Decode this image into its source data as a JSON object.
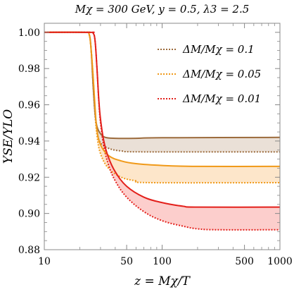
{
  "chart_data": {
    "type": "line",
    "title": "Mχ = 300 GeV, y = 0.5, λ3 = 2.5",
    "xlabel": "z = Mχ/T",
    "ylabel": "YSE/YLO",
    "xscale": "log",
    "xlim": [
      10,
      1000
    ],
    "ylim": [
      0.88,
      1.005
    ],
    "xticks": [
      10,
      50,
      100,
      500,
      1000
    ],
    "xtick_labels": [
      "10",
      "50",
      "100",
      "500",
      "1000"
    ],
    "yticks": [
      0.88,
      0.9,
      0.92,
      0.94,
      0.96,
      0.98,
      1.0
    ],
    "ytick_labels": [
      "0.88",
      "0.90",
      "0.92",
      "0.94",
      "0.96",
      "0.98",
      "1.00"
    ],
    "legend_position": "top-right",
    "series": [
      {
        "name": "ΔM/Mχ = 0.1",
        "color": "#9c6b3c",
        "fill": "#e8ddd3",
        "solid": [
          [
            10,
            1.0
          ],
          [
            22,
            1.0
          ],
          [
            24,
            0.999
          ],
          [
            25,
            0.99
          ],
          [
            26,
            0.97
          ],
          [
            27,
            0.955
          ],
          [
            28,
            0.948
          ],
          [
            30,
            0.944
          ],
          [
            33,
            0.942
          ],
          [
            40,
            0.9415
          ],
          [
            60,
            0.9415
          ],
          [
            100,
            0.9418
          ],
          [
            1000,
            0.942
          ]
        ],
        "dotted": [
          [
            10,
            1.0
          ],
          [
            22,
            1.0
          ],
          [
            24,
            0.999
          ],
          [
            25,
            0.99
          ],
          [
            26,
            0.97
          ],
          [
            27,
            0.954
          ],
          [
            28,
            0.945
          ],
          [
            30,
            0.939
          ],
          [
            35,
            0.936
          ],
          [
            45,
            0.9345
          ],
          [
            70,
            0.934
          ],
          [
            1000,
            0.934
          ]
        ]
      },
      {
        "name": "ΔM/Mχ = 0.05",
        "color": "#f09a1a",
        "fill": "#fde3c4",
        "solid": [
          [
            10,
            1.0
          ],
          [
            22,
            1.0
          ],
          [
            24,
            0.999
          ],
          [
            25,
            0.99
          ],
          [
            26,
            0.975
          ],
          [
            27,
            0.958
          ],
          [
            28,
            0.946
          ],
          [
            30,
            0.938
          ],
          [
            35,
            0.932
          ],
          [
            45,
            0.929
          ],
          [
            60,
            0.9275
          ],
          [
            100,
            0.9265
          ],
          [
            200,
            0.926
          ],
          [
            1000,
            0.926
          ]
        ],
        "dotted": [
          [
            10,
            1.0
          ],
          [
            22,
            1.0
          ],
          [
            24,
            0.999
          ],
          [
            25,
            0.99
          ],
          [
            26,
            0.975
          ],
          [
            27,
            0.956
          ],
          [
            28,
            0.943
          ],
          [
            30,
            0.933
          ],
          [
            35,
            0.925
          ],
          [
            45,
            0.92
          ],
          [
            60,
            0.918
          ],
          [
            80,
            0.917
          ],
          [
            1000,
            0.917
          ]
        ]
      },
      {
        "name": "ΔM/Mχ = 0.01",
        "color": "#e3201b",
        "fill": "#fcc9c6",
        "solid": [
          [
            10,
            1.0
          ],
          [
            24,
            1.0
          ],
          [
            26,
            0.9995
          ],
          [
            27,
            0.995
          ],
          [
            28,
            0.98
          ],
          [
            29,
            0.963
          ],
          [
            30,
            0.952
          ],
          [
            32,
            0.94
          ],
          [
            35,
            0.931
          ],
          [
            40,
            0.923
          ],
          [
            50,
            0.915
          ],
          [
            70,
            0.909
          ],
          [
            100,
            0.906
          ],
          [
            150,
            0.904
          ],
          [
            200,
            0.9035
          ],
          [
            1000,
            0.9035
          ]
        ],
        "dotted": [
          [
            10,
            1.0
          ],
          [
            24,
            1.0
          ],
          [
            26,
            0.9995
          ],
          [
            27,
            0.995
          ],
          [
            28,
            0.98
          ],
          [
            29,
            0.962
          ],
          [
            30,
            0.95
          ],
          [
            32,
            0.937
          ],
          [
            35,
            0.927
          ],
          [
            40,
            0.918
          ],
          [
            50,
            0.909
          ],
          [
            70,
            0.901
          ],
          [
            100,
            0.896
          ],
          [
            150,
            0.893
          ],
          [
            200,
            0.8915
          ],
          [
            300,
            0.891
          ],
          [
            1000,
            0.891
          ]
        ]
      }
    ]
  }
}
